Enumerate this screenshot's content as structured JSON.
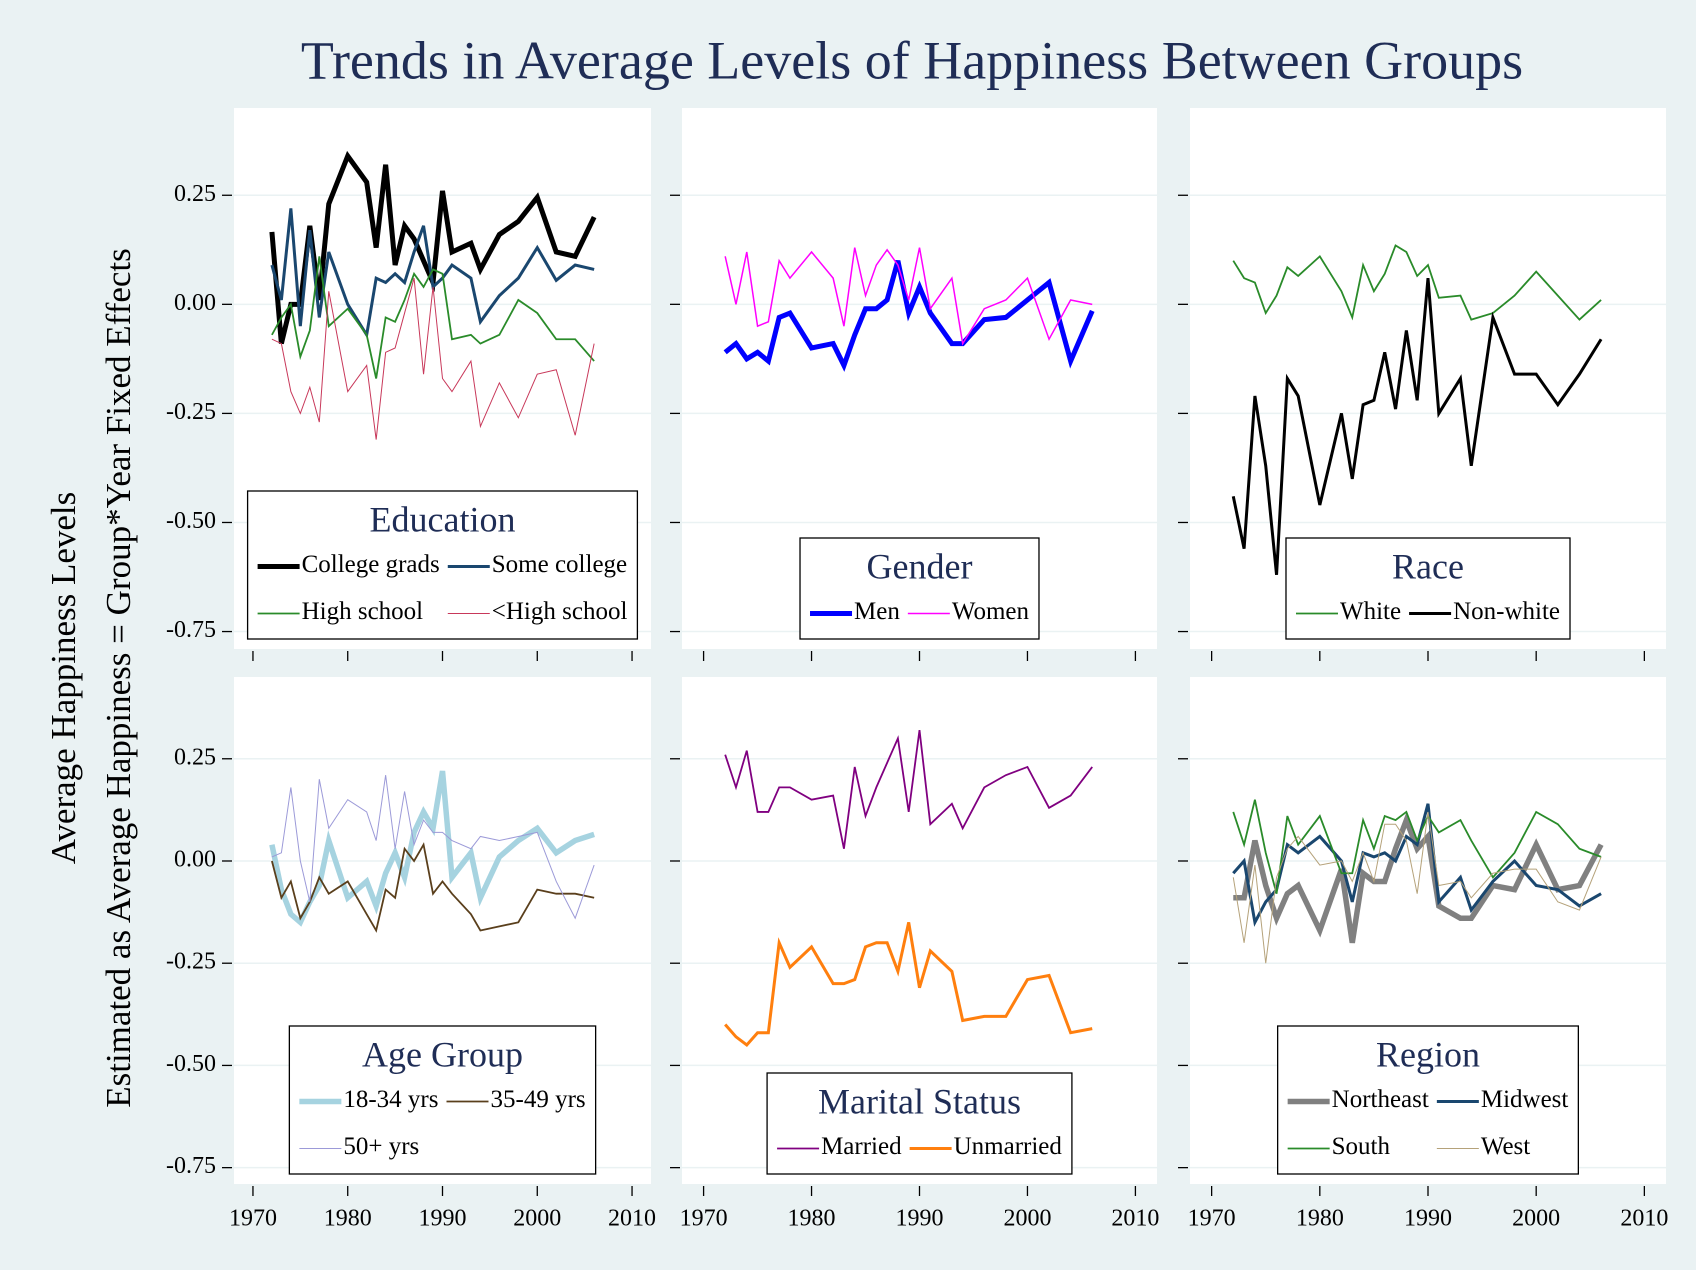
{
  "title": "Trends in Average Levels of Happiness Between Groups",
  "ylabel": [
    "Average Happiness Levels",
    "Estimated as Average Happiness = Group*Year Fixed Effects"
  ],
  "chart_data": [
    {
      "type": "line",
      "title": "Education",
      "legend": "lower center",
      "grid": true,
      "x": [
        1972,
        1973,
        1974,
        1975,
        1976,
        1977,
        1978,
        1980,
        1982,
        1983,
        1984,
        1985,
        1986,
        1987,
        1988,
        1989,
        1990,
        1991,
        1993,
        1994,
        1996,
        1998,
        2000,
        2002,
        2004,
        2006
      ],
      "xlim": [
        1968,
        2012
      ],
      "xticks": [
        1970,
        1980,
        1990,
        2000,
        2010
      ],
      "ylim": [
        -0.79,
        0.45
      ],
      "yticks": [
        0.25,
        {
          "value": 0,
          "label": "0.00"
        },
        -0.25,
        {
          "value": -0.5,
          "label": "-0.50"
        },
        -0.75
      ],
      "series": [
        {
          "name": "College grads",
          "color": "#000000",
          "width": 5,
          "values": [
            0.166,
            -0.09,
            0.0,
            0.0,
            0.18,
            0.01,
            0.23,
            0.34,
            0.28,
            0.13,
            0.32,
            0.09,
            0.18,
            0.15,
            0.1,
            0.05,
            0.26,
            0.12,
            0.14,
            0.08,
            0.16,
            0.19,
            0.245,
            0.12,
            0.11,
            0.2
          ]
        },
        {
          "name": "Some college",
          "color": "#1a476f",
          "width": 3,
          "values": [
            0.09,
            0.01,
            0.22,
            -0.05,
            0.17,
            -0.03,
            0.12,
            0.0,
            -0.07,
            0.06,
            0.05,
            0.07,
            0.05,
            0.12,
            0.18,
            0.04,
            0.06,
            0.09,
            0.06,
            -0.04,
            0.02,
            0.06,
            0.13,
            0.055,
            0.09,
            0.08
          ]
        },
        {
          "name": "High school",
          "color": "#2a8b2a",
          "width": 1.8,
          "values": [
            -0.07,
            -0.03,
            0.0,
            -0.12,
            -0.06,
            0.11,
            -0.05,
            -0.01,
            -0.07,
            -0.17,
            -0.03,
            -0.04,
            0.01,
            0.07,
            0.04,
            0.08,
            0.07,
            -0.08,
            -0.07,
            -0.09,
            -0.07,
            0.01,
            -0.02,
            -0.08,
            -0.08,
            -0.13
          ]
        },
        {
          "name": "<High school",
          "color": "#c8385a",
          "width": 1,
          "values": [
            -0.08,
            -0.09,
            -0.2,
            -0.25,
            -0.19,
            -0.27,
            0.03,
            -0.2,
            -0.14,
            -0.31,
            -0.11,
            -0.1,
            -0.02,
            0.06,
            -0.16,
            0.04,
            -0.17,
            -0.2,
            -0.13,
            -0.28,
            -0.18,
            -0.26,
            -0.16,
            -0.15,
            -0.3,
            -0.09
          ]
        }
      ]
    },
    {
      "type": "line",
      "title": "Gender",
      "legend": "lower center",
      "grid": true,
      "x": [
        1972,
        1973,
        1974,
        1975,
        1976,
        1977,
        1978,
        1980,
        1982,
        1983,
        1984,
        1985,
        1986,
        1987,
        1988,
        1989,
        1990,
        1991,
        1993,
        1994,
        1996,
        1998,
        2000,
        2002,
        2004,
        2006
      ],
      "xlim": [
        1968,
        2012
      ],
      "xticks": [
        1970,
        1980,
        1990,
        2000,
        2010
      ],
      "ylim": [
        -0.79,
        0.45
      ],
      "yticks": [
        0.25,
        {
          "value": 0,
          "label": "0.00"
        },
        -0.25,
        {
          "value": -0.5,
          "label": "-0.50"
        },
        -0.75
      ],
      "series": [
        {
          "name": "Men",
          "color": "#0000ff",
          "width": 5,
          "values": [
            -0.11,
            -0.09,
            -0.125,
            -0.11,
            -0.13,
            -0.03,
            -0.02,
            -0.1,
            -0.09,
            -0.14,
            -0.07,
            -0.01,
            -0.01,
            0.01,
            0.1,
            -0.02,
            0.04,
            -0.02,
            -0.09,
            -0.09,
            -0.035,
            -0.03,
            0.01,
            0.05,
            -0.13,
            -0.015
          ]
        },
        {
          "name": "Women",
          "color": "#ff00ff",
          "width": 1.5,
          "values": [
            0.11,
            0.0,
            0.12,
            -0.05,
            -0.04,
            0.1,
            0.06,
            0.12,
            0.06,
            -0.05,
            0.13,
            0.02,
            0.09,
            0.125,
            0.09,
            0.01,
            0.13,
            -0.01,
            0.06,
            -0.09,
            -0.01,
            0.01,
            0.06,
            -0.08,
            0.01,
            0.0
          ]
        }
      ]
    },
    {
      "type": "line",
      "title": "Race",
      "legend": "lower center",
      "grid": true,
      "x": [
        1972,
        1973,
        1974,
        1975,
        1976,
        1977,
        1978,
        1980,
        1982,
        1983,
        1984,
        1985,
        1986,
        1987,
        1988,
        1989,
        1990,
        1991,
        1993,
        1994,
        1996,
        1998,
        2000,
        2002,
        2004,
        2006
      ],
      "xlim": [
        1968,
        2012
      ],
      "xticks": [
        1970,
        1980,
        1990,
        2000,
        2010
      ],
      "ylim": [
        -0.79,
        0.45
      ],
      "yticks": [
        0.25,
        {
          "value": 0,
          "label": "0.00"
        },
        -0.25,
        {
          "value": -0.5,
          "label": "-0.50"
        },
        -0.75
      ],
      "series": [
        {
          "name": "White",
          "color": "#2a8b2a",
          "width": 1.8,
          "values": [
            0.1,
            0.06,
            0.05,
            -0.02,
            0.02,
            0.085,
            0.065,
            0.11,
            0.03,
            -0.03,
            0.09,
            0.03,
            0.07,
            0.135,
            0.12,
            0.065,
            0.09,
            0.015,
            0.02,
            -0.035,
            -0.02,
            0.02,
            0.075,
            0.02,
            -0.035,
            0.01
          ]
        },
        {
          "name": "Non-white",
          "color": "#000000",
          "width": 3,
          "values": [
            -0.44,
            -0.56,
            -0.21,
            -0.37,
            -0.62,
            -0.17,
            -0.21,
            -0.46,
            -0.25,
            -0.4,
            -0.23,
            -0.22,
            -0.11,
            -0.24,
            -0.06,
            -0.22,
            0.06,
            -0.25,
            -0.17,
            -0.37,
            -0.03,
            -0.16,
            -0.16,
            -0.23,
            -0.16,
            -0.08
          ]
        }
      ]
    },
    {
      "type": "line",
      "title": "Age Group",
      "legend": "lower center",
      "grid": true,
      "x": [
        1972,
        1973,
        1974,
        1975,
        1976,
        1977,
        1978,
        1980,
        1982,
        1983,
        1984,
        1985,
        1986,
        1987,
        1988,
        1989,
        1990,
        1991,
        1993,
        1994,
        1996,
        1998,
        2000,
        2002,
        2004,
        2006
      ],
      "xlim": [
        1968,
        2012
      ],
      "xticks": [
        1970,
        1980,
        1990,
        2000,
        2010
      ],
      "ylim": [
        -0.79,
        0.45
      ],
      "yticks": [
        0.25,
        {
          "value": 0,
          "label": "0.00"
        },
        -0.25,
        {
          "value": -0.5,
          "label": "-0.50"
        },
        -0.75
      ],
      "series": [
        {
          "name": "18-34 yrs",
          "color": "#a6d3e0",
          "width": 5.5,
          "values": [
            0.04,
            -0.07,
            -0.13,
            -0.15,
            -0.1,
            -0.06,
            0.05,
            -0.09,
            -0.05,
            -0.11,
            -0.03,
            0.02,
            -0.04,
            0.07,
            0.12,
            0.08,
            0.22,
            -0.04,
            0.02,
            -0.09,
            0.01,
            0.05,
            0.08,
            0.02,
            0.05,
            0.065
          ]
        },
        {
          "name": "35-49 yrs",
          "color": "#5a3f1c",
          "width": 1.8,
          "values": [
            0.0,
            -0.09,
            -0.05,
            -0.14,
            -0.1,
            -0.04,
            -0.08,
            -0.05,
            -0.13,
            -0.17,
            -0.07,
            -0.09,
            0.03,
            0.0,
            0.04,
            -0.08,
            -0.05,
            -0.08,
            -0.13,
            -0.17,
            -0.16,
            -0.15,
            -0.07,
            -0.08,
            -0.08,
            -0.09
          ]
        },
        {
          "name": "50+ yrs",
          "color": "#9c9ad8",
          "width": 1,
          "values": [
            0.01,
            0.02,
            0.18,
            0.0,
            -0.1,
            0.2,
            0.08,
            0.15,
            0.12,
            0.05,
            0.21,
            0.03,
            0.17,
            0.04,
            0.1,
            0.07,
            0.07,
            0.05,
            0.03,
            0.06,
            0.05,
            0.06,
            0.07,
            -0.05,
            -0.14,
            -0.01
          ]
        }
      ]
    },
    {
      "type": "line",
      "title": "Marital Status",
      "legend": "lower center",
      "grid": true,
      "x": [
        1972,
        1973,
        1974,
        1975,
        1976,
        1977,
        1978,
        1980,
        1982,
        1983,
        1984,
        1985,
        1986,
        1987,
        1988,
        1989,
        1990,
        1991,
        1993,
        1994,
        1996,
        1998,
        2000,
        2002,
        2004,
        2006
      ],
      "xlim": [
        1968,
        2012
      ],
      "xticks": [
        1970,
        1980,
        1990,
        2000,
        2010
      ],
      "ylim": [
        -0.79,
        0.45
      ],
      "yticks": [
        0.25,
        {
          "value": 0,
          "label": "0.00"
        },
        -0.25,
        {
          "value": -0.5,
          "label": "-0.50"
        },
        -0.75
      ],
      "series": [
        {
          "name": "Married",
          "color": "#800080",
          "width": 1.8,
          "values": [
            0.26,
            0.18,
            0.27,
            0.12,
            0.12,
            0.18,
            0.18,
            0.15,
            0.16,
            0.03,
            0.23,
            0.11,
            0.18,
            0.24,
            0.3,
            0.12,
            0.32,
            0.09,
            0.14,
            0.08,
            0.18,
            0.21,
            0.23,
            0.13,
            0.16,
            0.23
          ]
        },
        {
          "name": "Unmarried",
          "color": "#ff7f0e",
          "width": 3,
          "values": [
            -0.4,
            -0.43,
            -0.45,
            -0.42,
            -0.42,
            -0.2,
            -0.26,
            -0.21,
            -0.3,
            -0.3,
            -0.29,
            -0.21,
            -0.2,
            -0.2,
            -0.27,
            -0.15,
            -0.31,
            -0.22,
            -0.27,
            -0.39,
            -0.38,
            -0.38,
            -0.29,
            -0.28,
            -0.42,
            -0.41
          ]
        }
      ]
    },
    {
      "type": "line",
      "title": "Region",
      "legend": "lower center",
      "grid": true,
      "x": [
        1972,
        1973,
        1974,
        1975,
        1976,
        1977,
        1978,
        1980,
        1982,
        1983,
        1984,
        1985,
        1986,
        1987,
        1988,
        1989,
        1990,
        1991,
        1993,
        1994,
        1996,
        1998,
        2000,
        2002,
        2004,
        2006
      ],
      "xlim": [
        1968,
        2012
      ],
      "xticks": [
        1970,
        1980,
        1990,
        2000,
        2010
      ],
      "ylim": [
        -0.79,
        0.45
      ],
      "yticks": [
        0.25,
        {
          "value": 0,
          "label": "0.00"
        },
        -0.25,
        {
          "value": -0.5,
          "label": "-0.50"
        },
        -0.75
      ],
      "series": [
        {
          "name": "Northeast",
          "color": "#808080",
          "width": 5.5,
          "values": [
            -0.09,
            -0.09,
            0.05,
            -0.06,
            -0.14,
            -0.08,
            -0.06,
            -0.17,
            -0.02,
            -0.2,
            -0.03,
            -0.05,
            -0.05,
            0.03,
            0.1,
            0.03,
            0.06,
            -0.11,
            -0.14,
            -0.14,
            -0.06,
            -0.07,
            0.04,
            -0.07,
            -0.06,
            0.04
          ]
        },
        {
          "name": "Midwest",
          "color": "#1a476f",
          "width": 3,
          "values": [
            -0.03,
            0.0,
            -0.15,
            -0.1,
            -0.07,
            0.04,
            0.02,
            0.06,
            0.0,
            -0.1,
            0.02,
            0.01,
            0.02,
            0.0,
            0.06,
            0.04,
            0.14,
            -0.1,
            -0.04,
            -0.12,
            -0.05,
            0.0,
            -0.06,
            -0.07,
            -0.11,
            -0.08
          ]
        },
        {
          "name": "South",
          "color": "#2a8b2a",
          "width": 1.8,
          "values": [
            0.12,
            0.04,
            0.15,
            0.02,
            -0.08,
            0.11,
            0.04,
            0.11,
            -0.03,
            -0.03,
            0.1,
            0.03,
            0.11,
            0.1,
            0.12,
            0.05,
            0.11,
            0.07,
            0.1,
            0.05,
            -0.04,
            0.02,
            0.12,
            0.09,
            0.03,
            0.01
          ]
        },
        {
          "name": "West",
          "color": "#b5a27a",
          "width": 1,
          "values": [
            -0.04,
            -0.2,
            -0.01,
            -0.25,
            -0.04,
            0.03,
            0.06,
            -0.01,
            0.0,
            -0.05,
            0.02,
            -0.05,
            0.09,
            0.09,
            0.05,
            -0.08,
            0.12,
            -0.06,
            -0.05,
            -0.09,
            -0.03,
            -0.02,
            -0.02,
            -0.1,
            -0.12,
            0.01
          ]
        }
      ]
    }
  ]
}
